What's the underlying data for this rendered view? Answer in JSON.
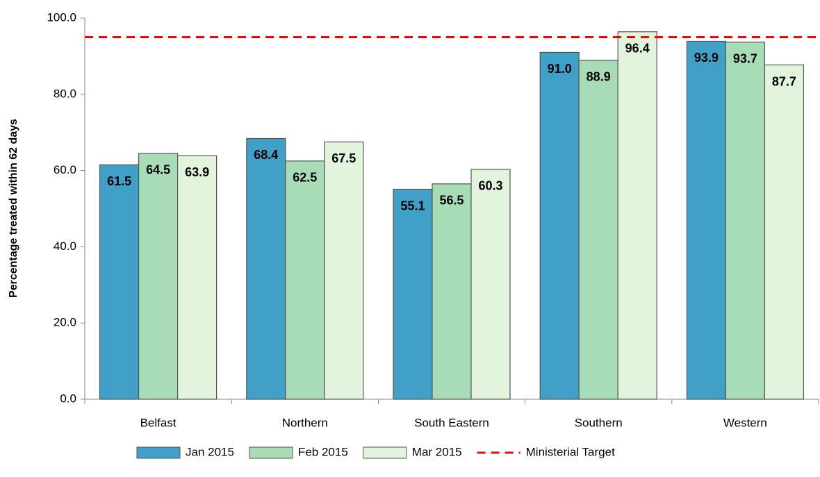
{
  "chart_data": {
    "type": "bar",
    "y_label": "Percentage treated within 62 days",
    "categories": [
      "Belfast",
      "Northern",
      "South Eastern",
      "Southern",
      "Western"
    ],
    "series": [
      {
        "name": "Jan 2015",
        "color": "#41a0c8",
        "values": [
          61.5,
          68.4,
          55.1,
          91.0,
          93.9
        ],
        "value_labels": [
          "61.5",
          "68.4",
          "55.1",
          "91.0",
          "93.9"
        ]
      },
      {
        "name": "Feb 2015",
        "color": "#a8dcb6",
        "values": [
          64.5,
          62.5,
          56.5,
          88.9,
          93.7
        ],
        "value_labels": [
          "64.5",
          "62.5",
          "56.5",
          "88.9",
          "93.7"
        ]
      },
      {
        "name": "Mar 2015",
        "color": "#e2f4dc",
        "values": [
          63.9,
          67.5,
          60.3,
          96.4,
          87.7
        ],
        "value_labels": [
          "63.9",
          "67.5",
          "60.3",
          "96.4",
          "87.7"
        ]
      }
    ],
    "target": {
      "name": "Ministerial Target",
      "value": 95,
      "color": "#ff0000"
    },
    "ylim": [
      0,
      100
    ],
    "yticks": [
      {
        "value": 0,
        "label": "0.0"
      },
      {
        "value": 20,
        "label": "20.0"
      },
      {
        "value": 40,
        "label": "40.0"
      },
      {
        "value": 60,
        "label": "60.0"
      },
      {
        "value": 80,
        "label": "80.0"
      },
      {
        "value": 100,
        "label": "100.0"
      }
    ]
  }
}
